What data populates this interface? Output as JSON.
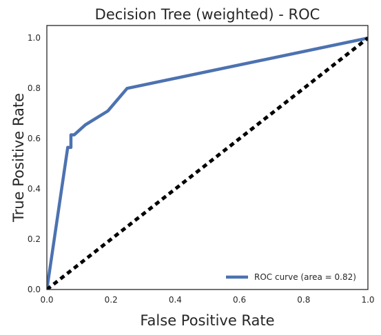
{
  "chart_data": {
    "type": "line",
    "title": "Decision Tree (weighted) - ROC",
    "xlabel": "False Positive Rate",
    "ylabel": "True Positive Rate",
    "xlim": [
      0.0,
      1.0
    ],
    "ylim": [
      0.0,
      1.05
    ],
    "x_ticks": [
      "0.0",
      "0.2",
      "0.4",
      "0.6",
      "0.8",
      "1.0"
    ],
    "y_ticks": [
      "0.0",
      "0.2",
      "0.4",
      "0.6",
      "0.8",
      "1.0"
    ],
    "grid": false,
    "legend_position": "lower-right",
    "series": [
      {
        "name": "ROC curve (area = 0.82)",
        "color": "#4c72b0",
        "style": "solid",
        "x": [
          0.0,
          0.065,
          0.075,
          0.075,
          0.085,
          0.12,
          0.19,
          0.25,
          1.0
        ],
        "y": [
          0.0,
          0.565,
          0.565,
          0.615,
          0.615,
          0.655,
          0.71,
          0.8,
          1.0
        ]
      },
      {
        "color": "#000000",
        "style": "dashed",
        "x": [
          0.0,
          1.0
        ],
        "y": [
          0.0,
          1.0
        ]
      }
    ]
  }
}
